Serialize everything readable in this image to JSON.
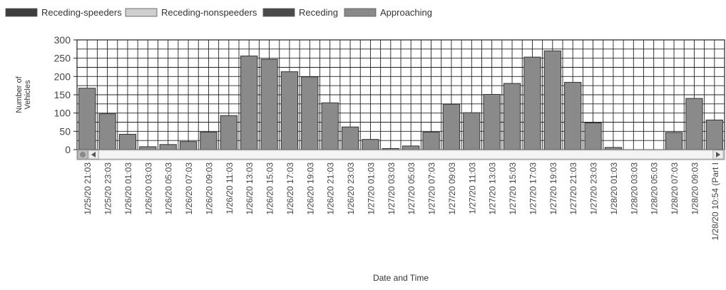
{
  "chart_data": {
    "type": "bar",
    "xlabel": "Date and Time",
    "ylabel": "Number of Vehicles",
    "ylim": [
      0,
      300
    ],
    "yticks": [
      0,
      50,
      100,
      150,
      200,
      250,
      300
    ],
    "grid": true,
    "legend_position": "top-left",
    "legend": [
      {
        "label": "Receding-speeders",
        "color": "#3d3d3d"
      },
      {
        "label": "Receding-nonspeeders",
        "color": "#cfcfcf"
      },
      {
        "label": "Receding",
        "color": "#4a4a4a"
      },
      {
        "label": "Approaching",
        "color": "#8a8a8a"
      }
    ],
    "categories": [
      "1/25/20 21:03",
      "1/25/20 23:03",
      "1/26/20 01:03",
      "1/26/20 03:03",
      "1/26/20 05:03",
      "1/26/20 07:03",
      "1/26/20 09:03",
      "1/26/20 11:03",
      "1/26/20 13:03",
      "1/26/20 15:03",
      "1/26/20 17:03",
      "1/26/20 19:03",
      "1/26/20 21:03",
      "1/26/20 23:03",
      "1/27/20 01:03",
      "1/27/20 03:03",
      "1/27/20 05:03",
      "1/27/20 07:03",
      "1/27/20 09:03",
      "1/27/20 11:03",
      "1/27/20 13:03",
      "1/27/20 15:03",
      "1/27/20 17:03",
      "1/27/20 19:03",
      "1/27/20 21:03",
      "1/27/20 23:03",
      "1/28/20 01:03",
      "1/28/20 03:03",
      "1/28/20 05:03",
      "1/28/20 07:03",
      "1/28/20 09:03",
      "1/28/20 10:54 (Part I"
    ],
    "series": [
      {
        "name": "Approaching",
        "color": "#8a8a8a",
        "values": [
          168,
          98,
          42,
          8,
          14,
          22,
          48,
          93,
          256,
          247,
          213,
          199,
          128,
          62,
          28,
          3,
          10,
          48,
          124,
          101,
          151,
          181,
          253,
          270,
          184,
          73,
          6,
          0,
          0,
          47,
          140,
          81
        ]
      }
    ]
  }
}
